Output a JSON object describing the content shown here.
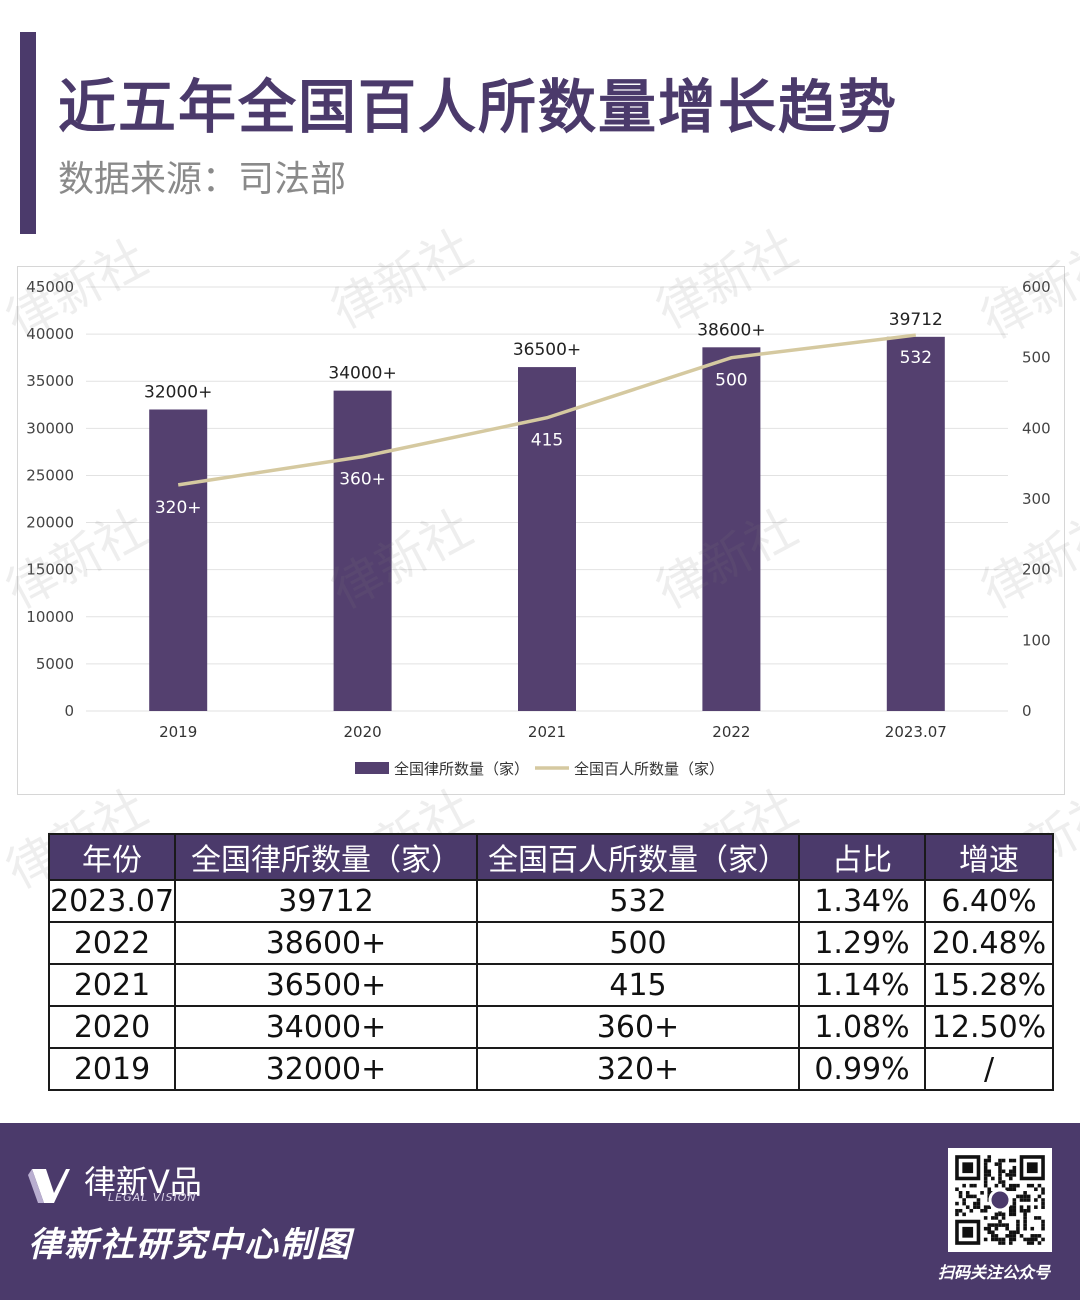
{
  "header": {
    "title": "近五年全国百人所数量增长趋势",
    "source": "数据来源：司法部"
  },
  "colors": {
    "accent": "#4b3a6b",
    "bar": "#54406f",
    "line": "#d5c9a0",
    "grid": "#e2e2e2"
  },
  "watermark_text": "律新社",
  "chart_data": {
    "type": "bar",
    "categories": [
      "2019",
      "2020",
      "2021",
      "2022",
      "2023.07"
    ],
    "series": [
      {
        "name": "全国律所数量（家）",
        "type": "bar",
        "axis": "left",
        "values": [
          32000,
          34000,
          36500,
          38600,
          39712
        ],
        "labels": [
          "32000+",
          "34000+",
          "36500+",
          "38600+",
          "39712"
        ]
      },
      {
        "name": "全国百人所数量（家）",
        "type": "line",
        "axis": "right",
        "values": [
          320,
          360,
          415,
          500,
          532
        ],
        "labels": [
          "320+",
          "360+",
          "415",
          "500",
          "532"
        ]
      }
    ],
    "y_left": {
      "min": 0,
      "max": 45000,
      "ticks": [
        "0",
        "5000",
        "10000",
        "15000",
        "20000",
        "25000",
        "30000",
        "35000",
        "40000",
        "45000"
      ]
    },
    "y_right": {
      "min": 0,
      "max": 600,
      "ticks": [
        "0",
        "100",
        "200",
        "300",
        "400",
        "500",
        "600"
      ]
    },
    "legend_position": "bottom",
    "grid": true
  },
  "table": {
    "headers": [
      "年份",
      "全国律所数量（家）",
      "全国百人所数量（家）",
      "占比",
      "增速"
    ],
    "rows": [
      [
        "2023.07",
        "39712",
        "532",
        "1.34%",
        "6.40%"
      ],
      [
        "2022",
        "38600+",
        "500",
        "1.29%",
        "20.48%"
      ],
      [
        "2021",
        "36500+",
        "415",
        "1.14%",
        "15.28%"
      ],
      [
        "2020",
        "34000+",
        "360+",
        "1.08%",
        "12.50%"
      ],
      [
        "2019",
        "32000+",
        "320+",
        "0.99%",
        "/"
      ]
    ]
  },
  "footer": {
    "logo_text": "律新V品",
    "logo_sub": "LEGAL VISION",
    "caption": "律新社研究中心制图",
    "qr_caption": "扫码关注公众号"
  }
}
